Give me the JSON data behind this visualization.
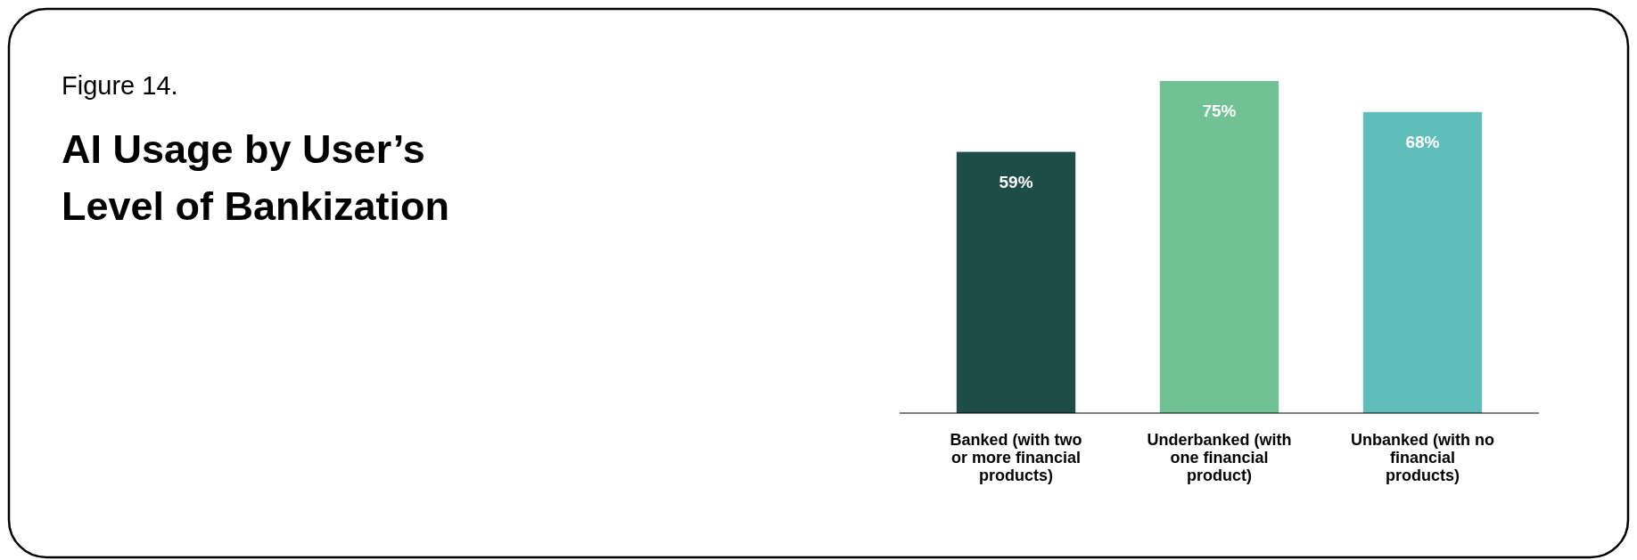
{
  "chart_data": {
    "type": "bar",
    "title": "AI Usage by User’s Level of Bankization",
    "annotations": [
      "Figure 14."
    ],
    "categories": [
      "Banked (with two or more financial products)",
      "Underbanked (with one financial product)",
      "Unbanked (with no financial products)"
    ],
    "values": [
      59,
      75,
      68
    ],
    "colors": [
      "#1e4d48",
      "#70c295",
      "#5fbdba"
    ],
    "value_labels": [
      "59%",
      "75%",
      "68%"
    ]
  }
}
